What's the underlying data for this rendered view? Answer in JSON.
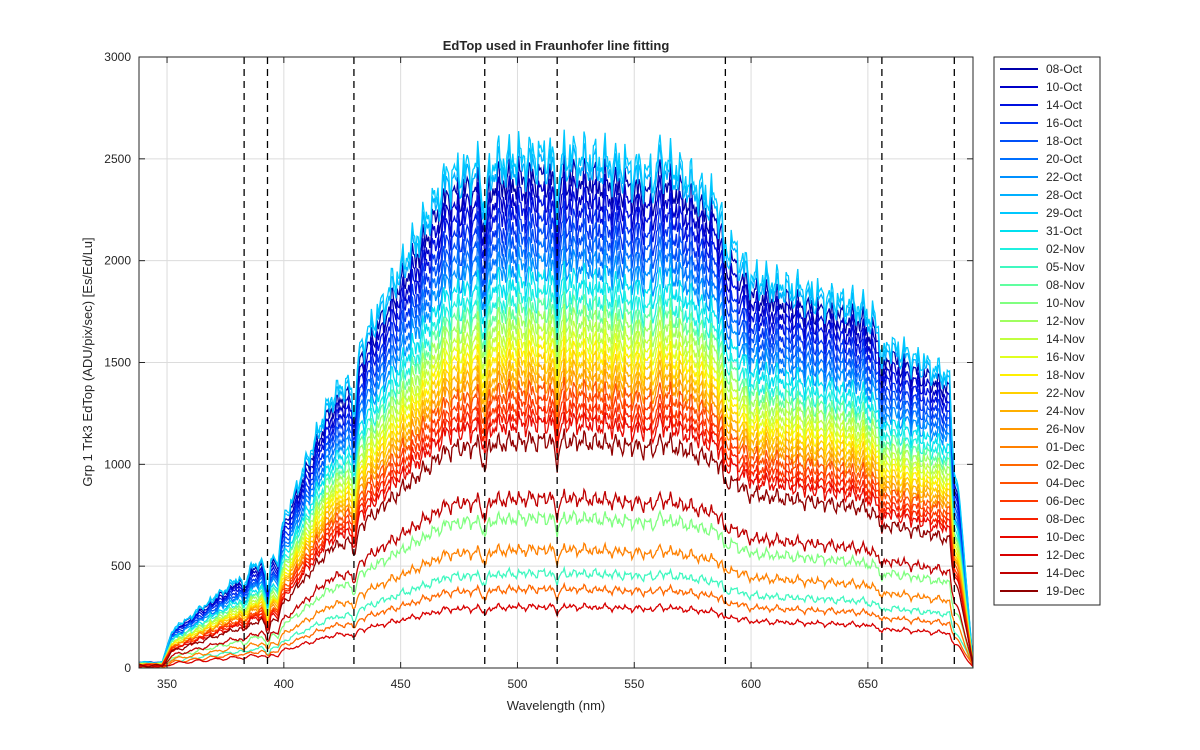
{
  "chart_data": {
    "type": "line",
    "title": "EdTop used in Fraunhofer line fitting",
    "xlabel": "Wavelength (nm)",
    "ylabel": "Grp 1 Trk3 EdTop (ADU/pix/sec) [Es/Ed/Lu]",
    "xlim": [
      338,
      695
    ],
    "ylim": [
      0,
      3000
    ],
    "xticks": [
      350,
      400,
      450,
      500,
      550,
      600,
      650
    ],
    "yticks": [
      0,
      500,
      1000,
      1500,
      2000,
      2500,
      3000
    ],
    "grid": true,
    "legend_position": "outside-right",
    "fraunhofer_lines_nm": [
      383,
      393,
      430,
      486,
      517,
      589,
      656,
      687
    ],
    "series": [
      {
        "name": "08-Oct",
        "color": "#0000AA",
        "scale": 2480
      },
      {
        "name": "10-Oct",
        "color": "#0000C8",
        "scale": 2400
      },
      {
        "name": "14-Oct",
        "color": "#0010E0",
        "scale": 2330
      },
      {
        "name": "16-Oct",
        "color": "#0030F0",
        "scale": 2250
      },
      {
        "name": "18-Oct",
        "color": "#0050F8",
        "scale": 2180
      },
      {
        "name": "20-Oct",
        "color": "#0070FF",
        "scale": 2110
      },
      {
        "name": "22-Oct",
        "color": "#0090FF",
        "scale": 2040
      },
      {
        "name": "28-Oct",
        "color": "#00B0FF",
        "scale": 2550
      },
      {
        "name": "29-Oct",
        "color": "#00C8FF",
        "scale": 2600
      },
      {
        "name": "31-Oct",
        "color": "#00E0F0",
        "scale": 1960
      },
      {
        "name": "02-Nov",
        "color": "#20F0E0",
        "scale": 1880
      },
      {
        "name": "05-Nov",
        "color": "#40F8C0",
        "scale": 480
      },
      {
        "name": "08-Nov",
        "color": "#60FFA0",
        "scale": 1820
      },
      {
        "name": "10-Nov",
        "color": "#80FF80",
        "scale": 760
      },
      {
        "name": "12-Nov",
        "color": "#A0FF60",
        "scale": 1760
      },
      {
        "name": "14-Nov",
        "color": "#C0FF40",
        "scale": 1700
      },
      {
        "name": "16-Nov",
        "color": "#E0FF20",
        "scale": 1650
      },
      {
        "name": "18-Nov",
        "color": "#FFF000",
        "scale": 1600
      },
      {
        "name": "22-Nov",
        "color": "#FFD000",
        "scale": 1550
      },
      {
        "name": "24-Nov",
        "color": "#FFB000",
        "scale": 1500
      },
      {
        "name": "26-Nov",
        "color": "#FF9800",
        "scale": 1450
      },
      {
        "name": "01-Dec",
        "color": "#FF8000",
        "scale": 600
      },
      {
        "name": "02-Dec",
        "color": "#FF6800",
        "scale": 400
      },
      {
        "name": "04-Dec",
        "color": "#FF5000",
        "scale": 1400
      },
      {
        "name": "06-Dec",
        "color": "#FF3800",
        "scale": 1340
      },
      {
        "name": "08-Dec",
        "color": "#F82000",
        "scale": 1290
      },
      {
        "name": "10-Dec",
        "color": "#E80800",
        "scale": 1240
      },
      {
        "name": "12-Dec",
        "color": "#D80000",
        "scale": 310
      },
      {
        "name": "14-Dec",
        "color": "#C00000",
        "scale": 860
      },
      {
        "name": "19-Dec",
        "color": "#900000",
        "scale": 1150
      }
    ]
  }
}
